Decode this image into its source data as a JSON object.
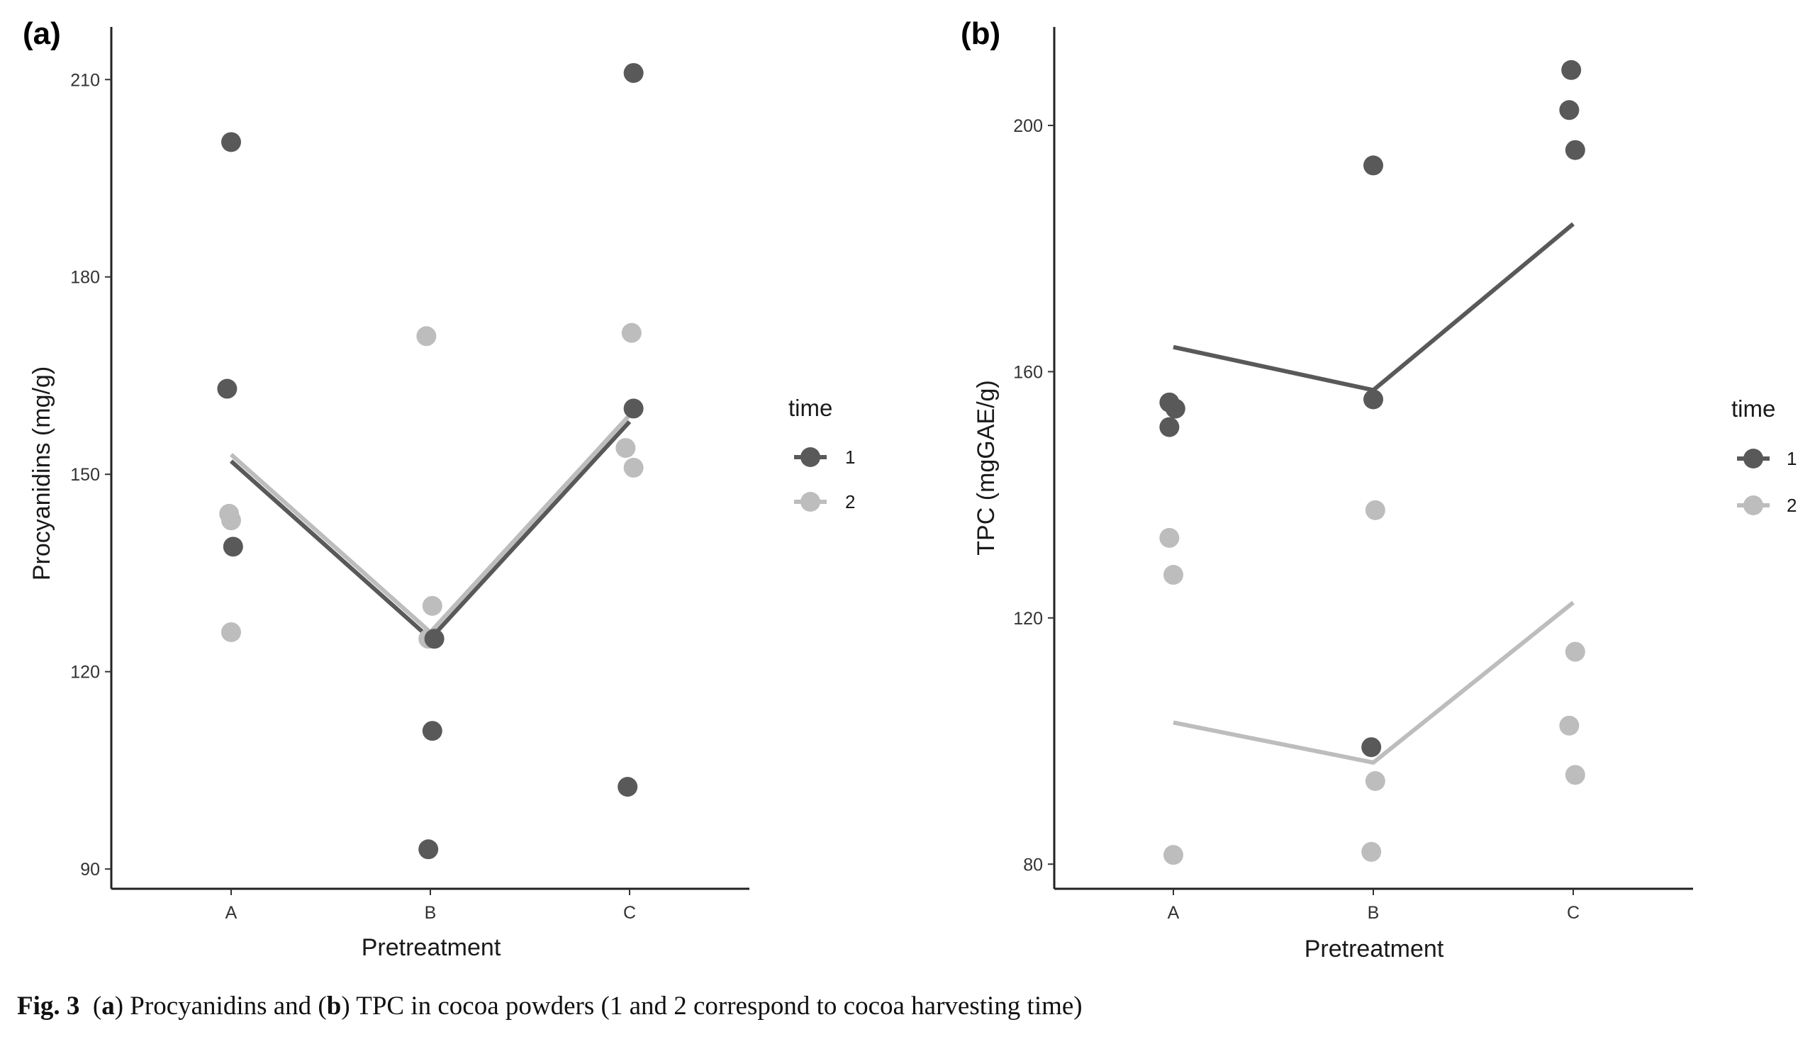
{
  "chart_data": [
    {
      "type": "scatter",
      "panel_label": "(a)",
      "title": "",
      "xlabel": "Pretreatment",
      "ylabel": "Procyanidins (mg/g)",
      "categories": [
        "A",
        "B",
        "C"
      ],
      "ylim": [
        87,
        218
      ],
      "yticks": [
        90,
        120,
        150,
        180,
        210
      ],
      "grid": false,
      "legend": {
        "title": "time",
        "entries": [
          "1",
          "2"
        ],
        "position": "right"
      },
      "series": [
        {
          "name": "1",
          "color": "#595959",
          "points": [
            {
              "category": "A",
              "jitter": 0.0,
              "y": 200.5
            },
            {
              "category": "A",
              "jitter": -0.02,
              "y": 163
            },
            {
              "category": "A",
              "jitter": 0.01,
              "y": 139
            },
            {
              "category": "B",
              "jitter": 0.02,
              "y": 125
            },
            {
              "category": "B",
              "jitter": 0.01,
              "y": 111
            },
            {
              "category": "B",
              "jitter": -0.01,
              "y": 93
            },
            {
              "category": "C",
              "jitter": 0.02,
              "y": 211
            },
            {
              "category": "C",
              "jitter": 0.02,
              "y": 160
            },
            {
              "category": "C",
              "jitter": -0.01,
              "y": 102.5
            }
          ],
          "means": [
            152,
            125,
            158
          ]
        },
        {
          "name": "2",
          "color": "#bdbdbd",
          "points": [
            {
              "category": "A",
              "jitter": -0.01,
              "y": 144
            },
            {
              "category": "A",
              "jitter": 0.0,
              "y": 143
            },
            {
              "category": "A",
              "jitter": 0.0,
              "y": 126
            },
            {
              "category": "B",
              "jitter": -0.02,
              "y": 171
            },
            {
              "category": "B",
              "jitter": 0.01,
              "y": 130
            },
            {
              "category": "B",
              "jitter": -0.01,
              "y": 125
            },
            {
              "category": "C",
              "jitter": 0.01,
              "y": 171.5
            },
            {
              "category": "C",
              "jitter": -0.02,
              "y": 154
            },
            {
              "category": "C",
              "jitter": 0.02,
              "y": 151
            }
          ],
          "means": [
            153,
            126,
            159
          ]
        }
      ]
    },
    {
      "type": "scatter",
      "panel_label": "(b)",
      "title": "",
      "xlabel": "Pretreatment",
      "ylabel": "TPC (mgGAE/g)",
      "categories": [
        "A",
        "B",
        "C"
      ],
      "ylim": [
        76,
        216
      ],
      "yticks": [
        80,
        120,
        160,
        200
      ],
      "grid": false,
      "legend": {
        "title": "time",
        "entries": [
          "1",
          "2"
        ],
        "position": "right"
      },
      "series": [
        {
          "name": "1",
          "color": "#595959",
          "points": [
            {
              "category": "A",
              "jitter": -0.02,
              "y": 155
            },
            {
              "category": "A",
              "jitter": 0.01,
              "y": 154
            },
            {
              "category": "A",
              "jitter": -0.02,
              "y": 151
            },
            {
              "category": "B",
              "jitter": 0.0,
              "y": 193.5
            },
            {
              "category": "B",
              "jitter": 0.0,
              "y": 155.5
            },
            {
              "category": "B",
              "jitter": -0.01,
              "y": 99
            },
            {
              "category": "C",
              "jitter": -0.01,
              "y": 209
            },
            {
              "category": "C",
              "jitter": -0.02,
              "y": 202.5
            },
            {
              "category": "C",
              "jitter": 0.01,
              "y": 196
            }
          ],
          "means": [
            164,
            157,
            184
          ]
        },
        {
          "name": "2",
          "color": "#bdbdbd",
          "points": [
            {
              "category": "A",
              "jitter": -0.02,
              "y": 133
            },
            {
              "category": "A",
              "jitter": 0.0,
              "y": 127
            },
            {
              "category": "A",
              "jitter": 0.0,
              "y": 81.5
            },
            {
              "category": "B",
              "jitter": 0.01,
              "y": 137.5
            },
            {
              "category": "B",
              "jitter": 0.01,
              "y": 93.5
            },
            {
              "category": "B",
              "jitter": -0.01,
              "y": 82
            },
            {
              "category": "C",
              "jitter": 0.01,
              "y": 114.5
            },
            {
              "category": "C",
              "jitter": -0.02,
              "y": 102.5
            },
            {
              "category": "C",
              "jitter": 0.01,
              "y": 94.5
            }
          ],
          "means": [
            103,
            96.5,
            122.5
          ]
        }
      ]
    }
  ],
  "caption": {
    "fig_label": "Fig. 3",
    "part1": "(",
    "a": "a",
    "part2": ") Procyanidins and (",
    "b": "b",
    "part3": ") TPC in cocoa powders (1 and 2 correspond to cocoa harvesting time)"
  }
}
